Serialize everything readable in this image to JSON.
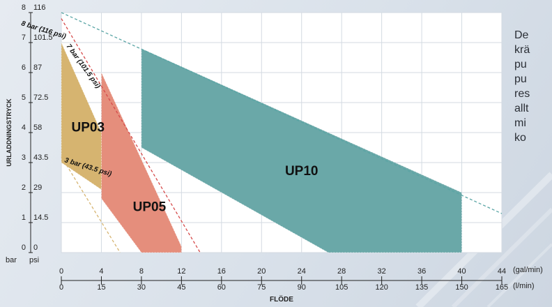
{
  "chart_data": {
    "type": "area",
    "y_axis_title": "URLADDNINGSTRYCK",
    "x_axis_title": "FLÖDE",
    "bar_ticks": [
      "0",
      "1",
      "2",
      "3",
      "4",
      "5",
      "6",
      "7",
      "8"
    ],
    "psi_ticks": [
      "0",
      "14.5",
      "29",
      "43.5",
      "58",
      "72.5",
      "87",
      "101.5",
      "116"
    ],
    "y_unit_bar": "bar",
    "y_unit_psi": "psi",
    "gal_ticks": [
      "0",
      "4",
      "8",
      "12",
      "16",
      "20",
      "24",
      "28",
      "32",
      "36",
      "40",
      "44"
    ],
    "lmin_ticks": [
      "0",
      "15",
      "30",
      "45",
      "60",
      "75",
      "90",
      "105",
      "120",
      "135",
      "150",
      "165"
    ],
    "x_unit_gal": "(gal/min)",
    "x_unit_lmin": "(l/min)",
    "xlim_lmin": [
      0,
      165
    ],
    "ylim_bar": [
      0,
      8
    ],
    "grid": true,
    "regions": [
      {
        "name": "UP10",
        "color": "#6aa8a8",
        "polygon_lmin_bar": [
          [
            30,
            6.8
          ],
          [
            150,
            2.0
          ],
          [
            150,
            0
          ],
          [
            100,
            0
          ],
          [
            30,
            3.5
          ]
        ]
      },
      {
        "name": "UP05",
        "color": "#e58e7c",
        "polygon_lmin_bar": [
          [
            15,
            6.0
          ],
          [
            45,
            0.2
          ],
          [
            45,
            0
          ],
          [
            30,
            0
          ],
          [
            15,
            1.8
          ]
        ]
      },
      {
        "name": "UP03",
        "color": "#d6b470",
        "polygon_lmin_bar": [
          [
            0,
            7.0
          ],
          [
            15,
            4.0
          ],
          [
            15,
            2.1
          ],
          [
            0,
            3.0
          ]
        ]
      }
    ],
    "curves": [
      {
        "label": "8 bar (116 psi)",
        "color": "#5aa5a5",
        "points_lmin_bar": [
          [
            0,
            8
          ],
          [
            165,
            1.3
          ]
        ]
      },
      {
        "label": "7 bar (101.5 psi)",
        "color": "#d64a4a",
        "points_lmin_bar": [
          [
            0,
            7.8
          ],
          [
            52,
            0
          ]
        ]
      },
      {
        "label": "3 bar (43.5 psi)",
        "color": "#d6b470",
        "points_lmin_bar": [
          [
            0,
            3.2
          ],
          [
            22,
            0
          ]
        ]
      }
    ]
  },
  "side_text_lines": [
    "De",
    "krä",
    "pu",
    "pu",
    "res",
    "allt",
    "mi",
    "ko"
  ]
}
